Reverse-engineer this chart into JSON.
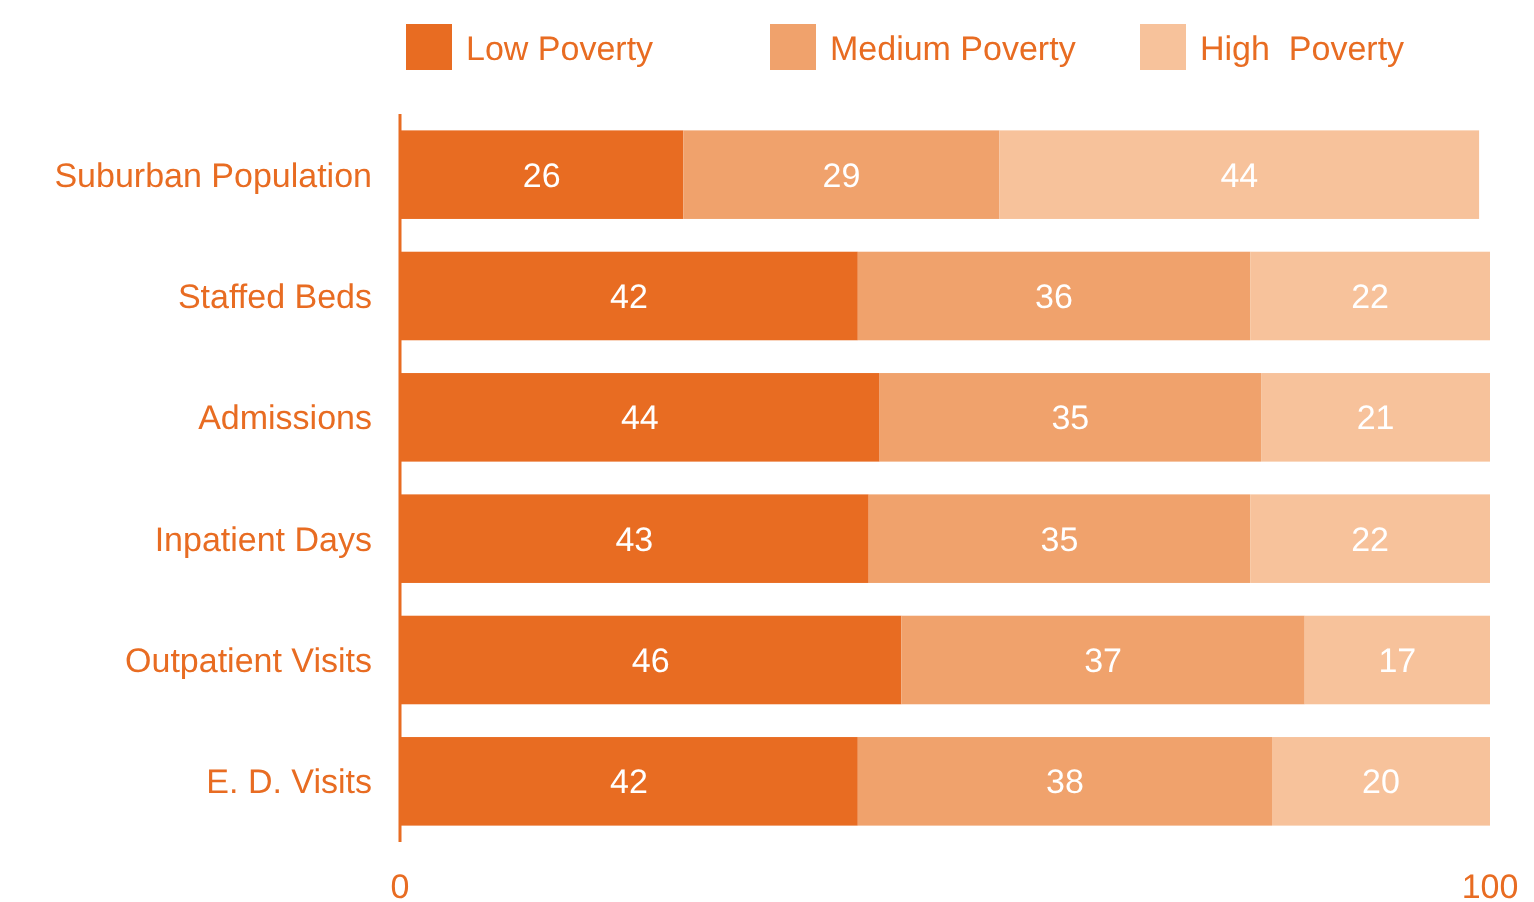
{
  "chart_data": {
    "type": "bar",
    "orientation": "horizontal",
    "stacked": true,
    "categories": [
      "Suburban Population",
      "Staffed Beds",
      "Admissions",
      "Inpatient Days",
      "Outpatient Visits",
      "E. D. Visits"
    ],
    "series": [
      {
        "name": "Low Poverty",
        "color": "#e86c22",
        "values": [
          26,
          42,
          44,
          43,
          46,
          42
        ]
      },
      {
        "name": "Medium Poverty",
        "color": "#f0a26c",
        "values": [
          29,
          36,
          35,
          35,
          37,
          38
        ]
      },
      {
        "name": "High  Poverty",
        "color": "#f7c29b",
        "values": [
          44,
          22,
          21,
          22,
          17,
          20
        ]
      }
    ],
    "xlim": [
      0,
      100
    ],
    "xticks": [
      0,
      100
    ],
    "data_labels": true,
    "legend": "top",
    "grid": false
  }
}
